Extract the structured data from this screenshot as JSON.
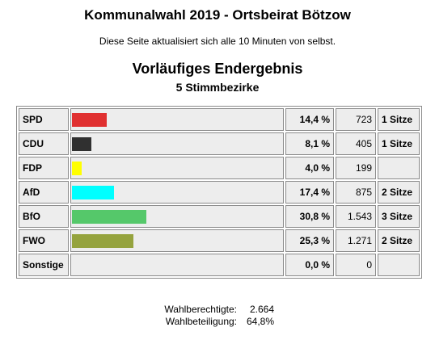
{
  "header": {
    "title": "Kommunalwahl 2019 - Ortsbeirat Bötzow",
    "refresh_note": "Diese Seite aktualisiert sich alle 10 Minuten von selbst.",
    "result_heading": "Vorläufiges Endergebnis",
    "districts": "5 Stimmbezirke"
  },
  "results": [
    {
      "party": "SPD",
      "percent": "14,4 %",
      "share": 14.4,
      "votes": "723",
      "seats": "1 Sitze",
      "color": "#e03030"
    },
    {
      "party": "CDU",
      "percent": "8,1 %",
      "share": 8.1,
      "votes": "405",
      "seats": "1 Sitze",
      "color": "#303030"
    },
    {
      "party": "FDP",
      "percent": "4,0 %",
      "share": 4.0,
      "votes": "199",
      "seats": "",
      "color": "#ffff00"
    },
    {
      "party": "AfD",
      "percent": "17,4 %",
      "share": 17.4,
      "votes": "875",
      "seats": "2 Sitze",
      "color": "#00ffff"
    },
    {
      "party": "BfO",
      "percent": "30,8 %",
      "share": 30.8,
      "votes": "1.543",
      "seats": "3 Sitze",
      "color": "#55c86a"
    },
    {
      "party": "FWO",
      "percent": "25,3 %",
      "share": 25.3,
      "votes": "1.271",
      "seats": "2 Sitze",
      "color": "#95a33e"
    },
    {
      "party": "Sonstige",
      "percent": "0,0 %",
      "share": 0.0,
      "votes": "0",
      "seats": "",
      "color": "#cccccc"
    }
  ],
  "footer": {
    "eligible_label": "Wahlberechtigte:",
    "eligible_value": "2.664",
    "turnout_label": "Wahlbeteiligung:",
    "turnout_value": "64,8%"
  }
}
